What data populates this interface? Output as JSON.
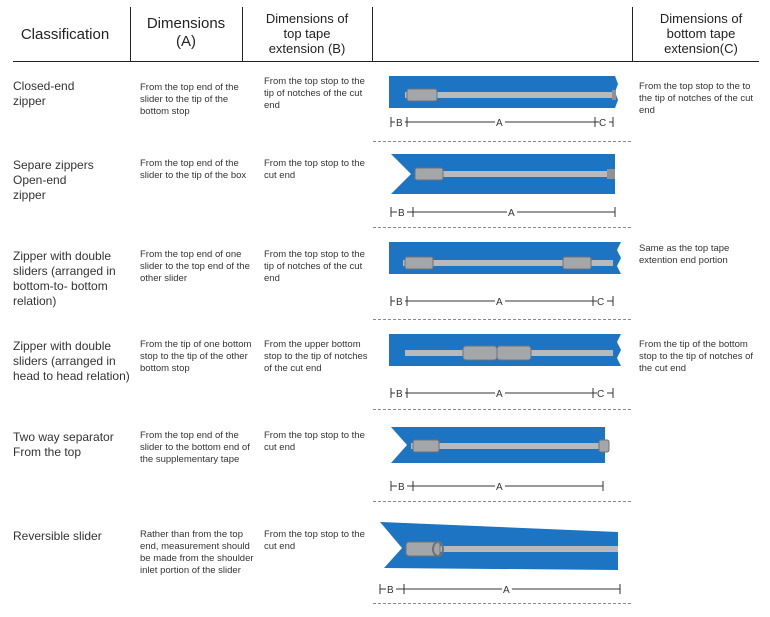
{
  "header": {
    "classification": "Classification",
    "dim_a": "Dimensions\n(A)",
    "dim_b": "Dimensions of\ntop tape\nextension (B)",
    "dim_c": "Dimensions of\nbottom tape\nextension(C)"
  },
  "colors": {
    "tape": "#1d74c2",
    "tape_dark": "#15599a",
    "teeth": "#b7b9bb",
    "metal": "#a4a7aa"
  },
  "rows": [
    {
      "classification": "Closed-end\nzipper",
      "dim_a": "From the top end of the slider to the tip of the bottom stop",
      "dim_b": "From the top stop to the tip of notches of the cut end",
      "dim_c": "From the top stop to the to the tip of notches of the cut end",
      "labels": {
        "b": "B",
        "a": "A",
        "c": "C"
      }
    },
    {
      "classification": "Separe zippers\nOpen-end\nzipper",
      "dim_a": "From the top end of the slider to the tip of the box",
      "dim_b": "From the top stop to the cut end",
      "dim_c": "",
      "labels": {
        "b": "B",
        "a": "A"
      }
    },
    {
      "classification": "Zipper with double sliders (arranged in bottom-to- bottom relation)",
      "dim_a": "From the top end of one slider to the top end of the other slider",
      "dim_b": "From the top stop to the tip of notches of the cut end",
      "dim_c": "Same as the top tape extention end portion",
      "labels": {
        "b": "B",
        "a": "A",
        "c": "C"
      }
    },
    {
      "classification": "Zipper with double sliders (arranged in head to head relation)",
      "dim_a": "From the tip of one bottom stop to the tip of the other bottom stop",
      "dim_b": "From the upper bottom stop to the tip of notches of the cut end",
      "dim_c": "From the tip of the bottom stop to the tip of notches of the cut end",
      "labels": {
        "b": "B",
        "a": "A",
        "c": "C"
      }
    },
    {
      "classification": "Two way separator\nFrom the top",
      "dim_a": "From the top end of the slider to the bottom end of the supplementary tape",
      "dim_b": "From the top stop to the cut end",
      "dim_c": "",
      "labels": {
        "b": "B",
        "a": "A"
      }
    },
    {
      "classification": "Reversible slider",
      "dim_a": "Rather than from the top end, measurement should be made from the shoulder inlet portion of the slider",
      "dim_b": "From the top stop to the cut end",
      "dim_c": "",
      "labels": {
        "b": "B",
        "a": "A"
      }
    }
  ]
}
